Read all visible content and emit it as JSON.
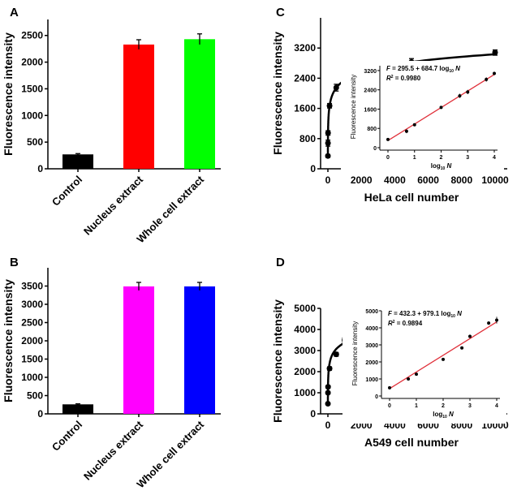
{
  "chart_data": [
    {
      "panel": "A",
      "type": "bar",
      "categories": [
        "Control",
        "Nucleus extract",
        "Whole cell extract"
      ],
      "values": [
        270,
        2330,
        2430
      ],
      "errors": [
        15,
        90,
        100
      ],
      "colors": [
        "#000000",
        "#ff0000",
        "#00ff00"
      ],
      "ylabel": "Fluorescence intensity",
      "ylim": [
        0,
        2800
      ],
      "yticks": [
        0,
        500,
        1000,
        1500,
        2000,
        2500
      ]
    },
    {
      "panel": "B",
      "type": "bar",
      "categories": [
        "Control",
        "Nucleus extract",
        "Whole cell extract"
      ],
      "values": [
        260,
        3490,
        3490
      ],
      "errors": [
        15,
        110,
        110
      ],
      "colors": [
        "#000000",
        "#ff00ff",
        "#0000ff"
      ],
      "ylabel": "Fluorescence intensity",
      "ylim": [
        0,
        4000
      ],
      "yticks": [
        0,
        500,
        1000,
        1500,
        2000,
        2500,
        3000,
        3500
      ]
    },
    {
      "panel": "C",
      "type": "scatter",
      "xlabel": "HeLa cell number",
      "ylabel": "Fluorescence intensity",
      "x": [
        1,
        5,
        10,
        100,
        500,
        1000,
        5000,
        10000
      ],
      "y": [
        340,
        680,
        950,
        1670,
        2150,
        2310,
        2830,
        3080
      ],
      "errors": [
        40,
        80,
        60,
        60,
        90,
        90,
        90,
        70
      ],
      "xlim": [
        0,
        10000
      ],
      "ylim": [
        0,
        4000
      ],
      "xticks": [
        0,
        2000,
        4000,
        6000,
        8000,
        10000
      ],
      "yticks": [
        0,
        800,
        1600,
        2400,
        3200
      ],
      "fit": {
        "a": 295.5,
        "b": 684.7
      },
      "inset": {
        "xlabel_main": "log",
        "xlabel_sub": "10",
        "xlabel_var": "N",
        "ylabel": "Fluorescence intensity",
        "x": [
          0,
          0.7,
          1,
          2,
          2.7,
          3,
          3.7,
          4
        ],
        "xlim": [
          0,
          4
        ],
        "ylim": [
          0,
          3400
        ],
        "xticks": [
          0,
          1,
          2,
          3,
          4
        ],
        "yticks": [
          0,
          800,
          1600,
          2400,
          3200
        ],
        "equation": "F = 295.5 + 684.7 log10 N",
        "eq_prefix": "F = 295.5 + 684.7 log",
        "eq_sub": "10",
        "eq_var": "N",
        "r2_label": "R",
        "r2_sup": "2",
        "r2_value": " = 0.9980",
        "line_color": "#e0303a"
      }
    },
    {
      "panel": "D",
      "type": "scatter",
      "xlabel": "A549 cell number",
      "ylabel": "Fluorescence intensity",
      "x": [
        1,
        5,
        10,
        100,
        500,
        1000,
        5000,
        10000
      ],
      "y": [
        480,
        1000,
        1280,
        2150,
        2820,
        3500,
        4280,
        4450
      ],
      "errors": [
        50,
        60,
        60,
        80,
        90,
        100,
        100,
        200
      ],
      "xlim": [
        0,
        10000
      ],
      "ylim": [
        0,
        5000
      ],
      "xticks": [
        0,
        2000,
        4000,
        6000,
        8000,
        10000
      ],
      "yticks": [
        0,
        1000,
        2000,
        3000,
        4000,
        5000
      ],
      "fit": {
        "a": 432.3,
        "b": 979.1
      },
      "inset": {
        "xlabel_main": "log",
        "xlabel_sub": "10",
        "xlabel_var": "N",
        "ylabel": "Fluorescence intensity",
        "x": [
          0,
          0.7,
          1,
          2,
          2.7,
          3,
          3.7,
          4
        ],
        "xlim": [
          0,
          4
        ],
        "ylim": [
          0,
          5000
        ],
        "xticks": [
          0,
          1,
          2,
          3,
          4
        ],
        "yticks": [
          0,
          1000,
          2000,
          3000,
          4000,
          5000
        ],
        "equation": "F = 432.3 + 979.1 log10 N",
        "eq_prefix": "F = 432.3 + 979.1 log",
        "eq_sub": "10",
        "eq_var": "N",
        "r2_label": "R",
        "r2_sup": "2",
        "r2_value": " = 0.9894",
        "line_color": "#e0303a"
      }
    }
  ]
}
